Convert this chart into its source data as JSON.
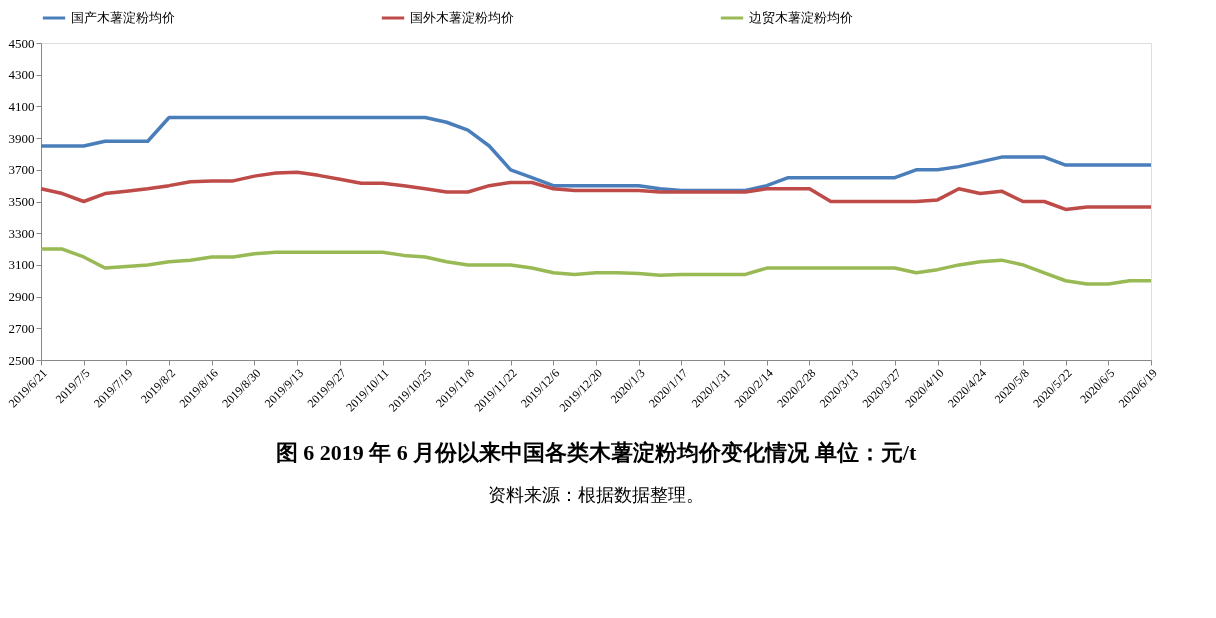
{
  "chart_data": {
    "type": "line",
    "title": "图 6   2019 年 6 月份以来中国各类木薯淀粉均价变化情况      单位：元/t",
    "annotations": [
      "资料来源：根据数据整理。"
    ],
    "categories": [
      "2019/6/21",
      null,
      "2019/7/5",
      null,
      "2019/7/19",
      null,
      "2019/8/2",
      null,
      "2019/8/16",
      null,
      "2019/8/30",
      null,
      "2019/9/13",
      null,
      "2019/9/27",
      null,
      "2019/10/11",
      null,
      "2019/10/25",
      null,
      "2019/11/8",
      null,
      "2019/11/22",
      null,
      "2019/12/6",
      null,
      "2019/12/20",
      null,
      "2020/1/3",
      null,
      "2020/1/17",
      null,
      "2020/1/31",
      null,
      "2020/2/14",
      null,
      "2020/2/28",
      null,
      "2020/3/13",
      null,
      "2020/3/27",
      null,
      "2020/4/10",
      null,
      "2020/4/24",
      null,
      "2020/5/8",
      null,
      "2020/5/22",
      null,
      "2020/6/5",
      null,
      "2020/6/19"
    ],
    "series": [
      {
        "name": "国产木薯淀粉均价",
        "color": "#4a7ebb",
        "values": [
          3850,
          3850,
          3850,
          3880,
          3880,
          3880,
          4030,
          4030,
          4030,
          4030,
          4030,
          4030,
          4030,
          4030,
          4030,
          4030,
          4030,
          4030,
          4030,
          4000,
          3950,
          3850,
          3700,
          3650,
          3600,
          3600,
          3600,
          3600,
          3600,
          3580,
          3570,
          3570,
          3570,
          3570,
          3600,
          3650,
          3650,
          3650,
          3650,
          3650,
          3650,
          3700,
          3700,
          3720,
          3750,
          3780,
          3780,
          3780,
          3730,
          3730,
          3730,
          3730,
          3730
        ]
      },
      {
        "name": "国外木薯淀粉均价",
        "color": "#be4b48",
        "values": [
          3580,
          3550,
          3500,
          3550,
          3565,
          3580,
          3600,
          3625,
          3630,
          3630,
          3660,
          3680,
          3685,
          3665,
          3640,
          3615,
          3615,
          3600,
          3580,
          3560,
          3560,
          3600,
          3620,
          3620,
          3580,
          3570,
          3570,
          3570,
          3570,
          3560,
          3560,
          3560,
          3560,
          3560,
          3580,
          3580,
          3580,
          3500,
          3500,
          3500,
          3500,
          3500,
          3510,
          3580,
          3550,
          3565,
          3500,
          3500,
          3450,
          3465,
          3465,
          3465,
          3465
        ]
      },
      {
        "name": "边贸木薯淀粉均价",
        "color": "#98b954",
        "values": [
          3200,
          3200,
          3150,
          3080,
          3090,
          3100,
          3120,
          3130,
          3150,
          3150,
          3170,
          3180,
          3180,
          3180,
          3180,
          3180,
          3180,
          3160,
          3150,
          3120,
          3100,
          3100,
          3100,
          3080,
          3050,
          3040,
          3050,
          3050,
          3045,
          3035,
          3040,
          3040,
          3040,
          3040,
          3080,
          3080,
          3080,
          3080,
          3080,
          3080,
          3080,
          3050,
          3070,
          3100,
          3120,
          3130,
          3100,
          3050,
          3000,
          2980,
          2980,
          3000,
          3000
        ]
      }
    ],
    "ylim": [
      2500,
      4500
    ],
    "yticks": [
      2500,
      2700,
      2900,
      3100,
      3300,
      3500,
      3700,
      3900,
      4100,
      4300,
      4500
    ],
    "grid": false,
    "legend": "top",
    "marker": "none",
    "line_style": "solid"
  }
}
